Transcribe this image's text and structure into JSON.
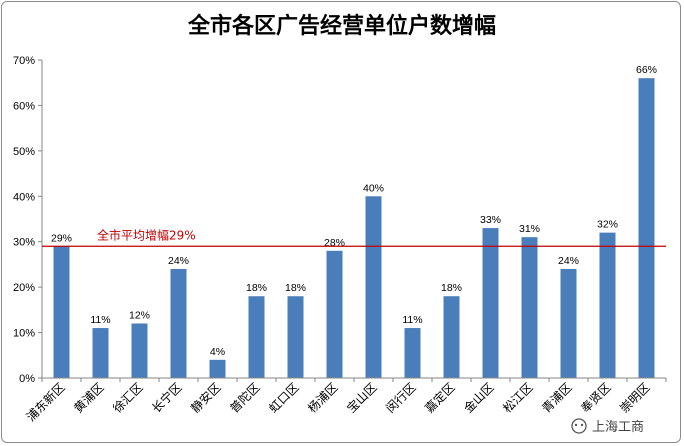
{
  "chart_data": {
    "type": "bar",
    "title": "全市各区广告经营单位户数增幅",
    "categories": [
      "浦东新区",
      "黄浦区",
      "徐汇区",
      "长宁区",
      "静安区",
      "普陀区",
      "虹口区",
      "杨浦区",
      "宝山区",
      "闵行区",
      "嘉定区",
      "金山区",
      "松江区",
      "青浦区",
      "奉贤区",
      "崇明区"
    ],
    "values": [
      29,
      11,
      12,
      24,
      4,
      18,
      18,
      28,
      40,
      11,
      18,
      33,
      31,
      24,
      32,
      66
    ],
    "value_labels": [
      "29%",
      "11%",
      "12%",
      "24%",
      "4%",
      "18%",
      "18%",
      "28%",
      "40%",
      "11%",
      "18%",
      "33%",
      "31%",
      "24%",
      "32%",
      "66%"
    ],
    "ylim": [
      0,
      70
    ],
    "yticks": [
      0,
      10,
      20,
      30,
      40,
      50,
      60,
      70
    ],
    "ytick_labels": [
      "0%",
      "10%",
      "20%",
      "30%",
      "40%",
      "50%",
      "60%",
      "70%"
    ],
    "reference_line": {
      "value": 29,
      "label": "全市平均增幅29%",
      "color": "#c00000"
    },
    "bar_color": "#4a7ebb",
    "gridlines": false,
    "legend": "none"
  },
  "watermark": {
    "text": "上海工商"
  }
}
